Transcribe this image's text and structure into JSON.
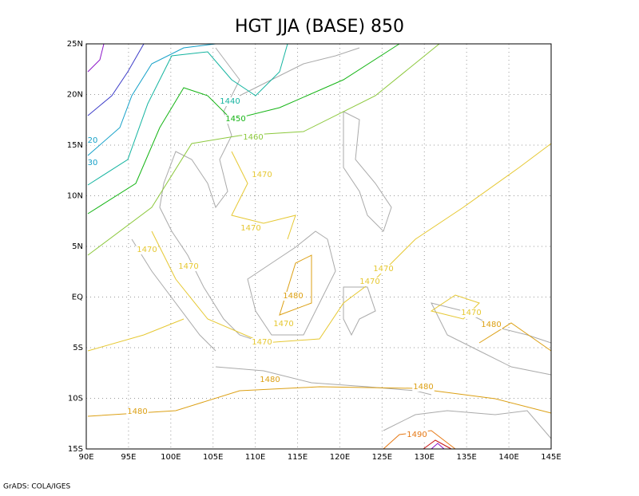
{
  "title": "HGT JJA (BASE) 850",
  "footer": "GrADS: COLA/IGES",
  "x_axis": {
    "lim": [
      90,
      145
    ],
    "ticks": [
      {
        "value": 90,
        "label": "90E"
      },
      {
        "value": 95,
        "label": "95E"
      },
      {
        "value": 100,
        "label": "100E"
      },
      {
        "value": 105,
        "label": "105E"
      },
      {
        "value": 110,
        "label": "110E"
      },
      {
        "value": 115,
        "label": "115E"
      },
      {
        "value": 120,
        "label": "120E"
      },
      {
        "value": 125,
        "label": "125E"
      },
      {
        "value": 130,
        "label": "130E"
      },
      {
        "value": 135,
        "label": "135E"
      },
      {
        "value": 140,
        "label": "140E"
      },
      {
        "value": 145,
        "label": "145E"
      }
    ]
  },
  "y_axis": {
    "lim": [
      -15,
      25
    ],
    "ticks": [
      {
        "value": -15,
        "label": "15S"
      },
      {
        "value": -10,
        "label": "10S"
      },
      {
        "value": -5,
        "label": "5S"
      },
      {
        "value": 0,
        "label": "EQ"
      },
      {
        "value": 5,
        "label": "5N"
      },
      {
        "value": 10,
        "label": "10N"
      },
      {
        "value": 15,
        "label": "15N"
      },
      {
        "value": 20,
        "label": "20N"
      },
      {
        "value": 25,
        "label": "25N"
      }
    ]
  },
  "contour_labels": [
    {
      "label": "20",
      "color": "#14a0c8"
    },
    {
      "label": "30",
      "color": "#14a0c8"
    },
    {
      "label": "1440",
      "color": "#14b4a0"
    },
    {
      "label": "1450",
      "color": "#14b414"
    },
    {
      "label": "1460",
      "color": "#8cc83c"
    },
    {
      "label": "1470",
      "color": "#e6c832"
    },
    {
      "label": "1470",
      "color": "#e6c832"
    },
    {
      "label": "1470",
      "color": "#e6c832"
    },
    {
      "label": "1470",
      "color": "#e6c832"
    },
    {
      "label": "1470",
      "color": "#e6c832"
    },
    {
      "label": "1470",
      "color": "#e6c832"
    },
    {
      "label": "1480",
      "color": "#dca014"
    },
    {
      "label": "1470",
      "color": "#e6c832"
    },
    {
      "label": "1470",
      "color": "#e6c832"
    },
    {
      "label": "1470",
      "color": "#e6c832"
    },
    {
      "label": "1480",
      "color": "#dca014"
    },
    {
      "label": "1480",
      "color": "#dca014"
    },
    {
      "label": "1480",
      "color": "#dca014"
    },
    {
      "label": "1480",
      "color": "#dca014"
    },
    {
      "label": "1490",
      "color": "#e67814"
    }
  ]
}
